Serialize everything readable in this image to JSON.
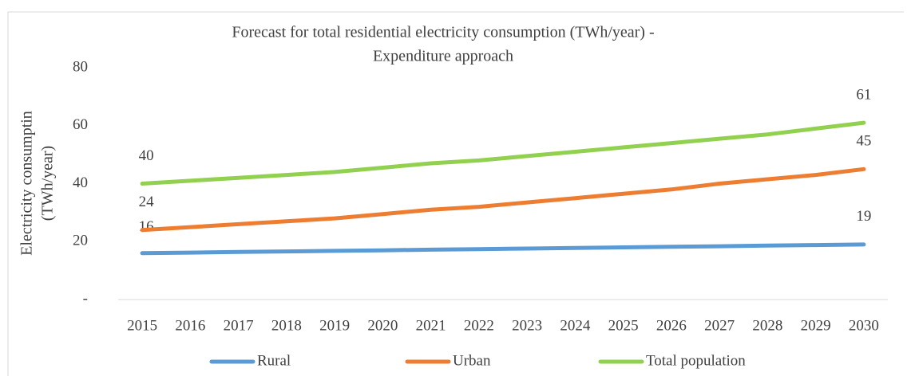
{
  "chart_data": {
    "type": "line",
    "title": [
      "Forecast for total residential electricity consumption (TWh/year) -",
      "Expenditure approach"
    ],
    "ylabel": [
      "Electricity consumptin",
      "(TWh/year)"
    ],
    "categories": [
      "2015",
      "2016",
      "2017",
      "2018",
      "2019",
      "2020",
      "2021",
      "2022",
      "2023",
      "2024",
      "2025",
      "2026",
      "2027",
      "2028",
      "2029",
      "2030"
    ],
    "series": [
      {
        "name": "Rural",
        "color": "#5b9bd5",
        "values": [
          16,
          16.2,
          16.4,
          16.6,
          16.8,
          17,
          17.2,
          17.4,
          17.6,
          17.8,
          18,
          18.2,
          18.4,
          18.6,
          18.8,
          19
        ]
      },
      {
        "name": "Urban",
        "color": "#ed7d31",
        "values": [
          24,
          25,
          26,
          27,
          28,
          29.5,
          31,
          32,
          33.5,
          35,
          36.5,
          38,
          40,
          41.5,
          43,
          45
        ]
      },
      {
        "name": "Total population",
        "color": "#92d050",
        "values": [
          40,
          41,
          42,
          43,
          44,
          45.5,
          47,
          48,
          49.5,
          51,
          52.5,
          54,
          55.5,
          57,
          59,
          61
        ]
      }
    ],
    "ylim": [
      0,
      80
    ],
    "yticks": [
      {
        "value": 0,
        "label": "-"
      },
      20,
      40,
      60,
      80
    ],
    "legend": "bottom"
  }
}
